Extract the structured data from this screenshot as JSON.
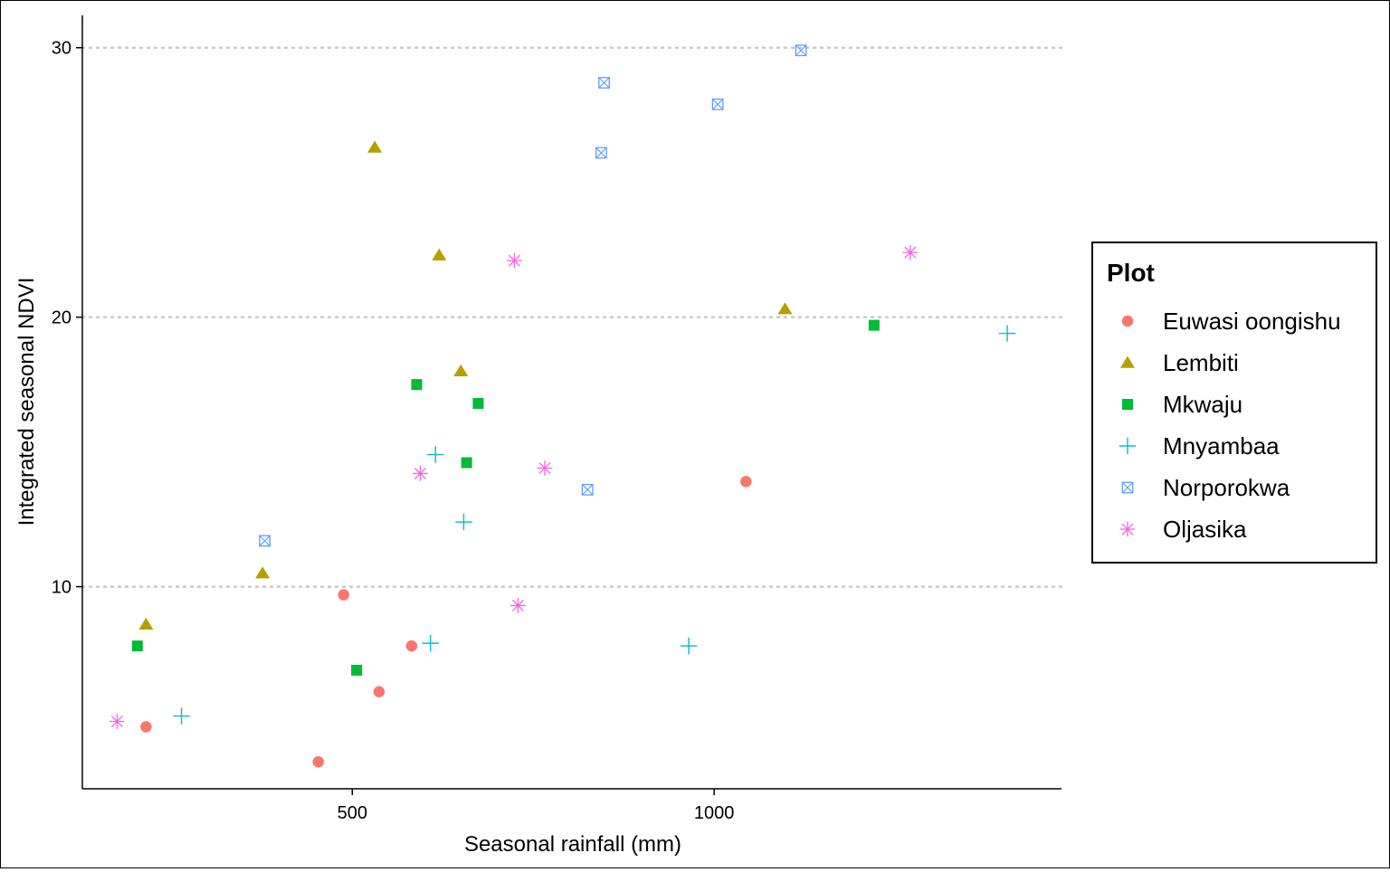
{
  "chart_data": {
    "type": "scatter",
    "title": "",
    "xlabel": "Seasonal rainfall (mm)",
    "ylabel": "Integrated seasonal NDVI",
    "xlim": [
      127,
      1480
    ],
    "ylim": [
      2.5,
      31.2
    ],
    "x_ticks": [
      500,
      1000
    ],
    "y_ticks": [
      10,
      20,
      30
    ],
    "grid": "horizontal dotted major lines",
    "legend": {
      "title": "Plot",
      "placement": "right"
    },
    "series": [
      {
        "name": "Euwasi oongishu",
        "color": "#F8766D",
        "marker": "circle",
        "points": [
          [
            215,
            4.8
          ],
          [
            453,
            3.5
          ],
          [
            488,
            9.7
          ],
          [
            537,
            6.1
          ],
          [
            582,
            7.8
          ],
          [
            1044,
            13.9
          ]
        ]
      },
      {
        "name": "Lembiti",
        "color": "#B79F00",
        "marker": "triangle",
        "points": [
          [
            215,
            8.6
          ],
          [
            376,
            10.5
          ],
          [
            531,
            26.3
          ],
          [
            620,
            22.3
          ],
          [
            650,
            18.0
          ],
          [
            1098,
            20.3
          ]
        ]
      },
      {
        "name": "Mkwaju",
        "color": "#00BA38",
        "marker": "square",
        "points": [
          [
            203,
            7.8
          ],
          [
            506,
            6.9
          ],
          [
            589,
            17.5
          ],
          [
            674,
            16.8
          ],
          [
            658,
            14.6
          ],
          [
            1221,
            19.7
          ]
        ]
      },
      {
        "name": "Mnyambaa",
        "color": "#00BFC4",
        "marker": "plus",
        "points": [
          [
            264,
            5.2
          ],
          [
            608,
            7.9
          ],
          [
            615,
            14.9
          ],
          [
            654,
            12.4
          ],
          [
            965,
            7.8
          ],
          [
            1405,
            19.4
          ]
        ]
      },
      {
        "name": "Norporokwa",
        "color": "#619CFF",
        "marker": "square-cross",
        "points": [
          [
            379,
            11.7
          ],
          [
            825,
            13.6
          ],
          [
            844,
            26.1
          ],
          [
            848,
            28.7
          ],
          [
            1005,
            27.9
          ],
          [
            1120,
            29.9
          ]
        ]
      },
      {
        "name": "Oljasika",
        "color": "#F564E3",
        "marker": "asterisk",
        "points": [
          [
            175,
            5.0
          ],
          [
            594,
            14.2
          ],
          [
            724,
            22.1
          ],
          [
            729,
            9.3
          ],
          [
            766,
            14.4
          ],
          [
            1271,
            22.4
          ]
        ]
      }
    ]
  }
}
